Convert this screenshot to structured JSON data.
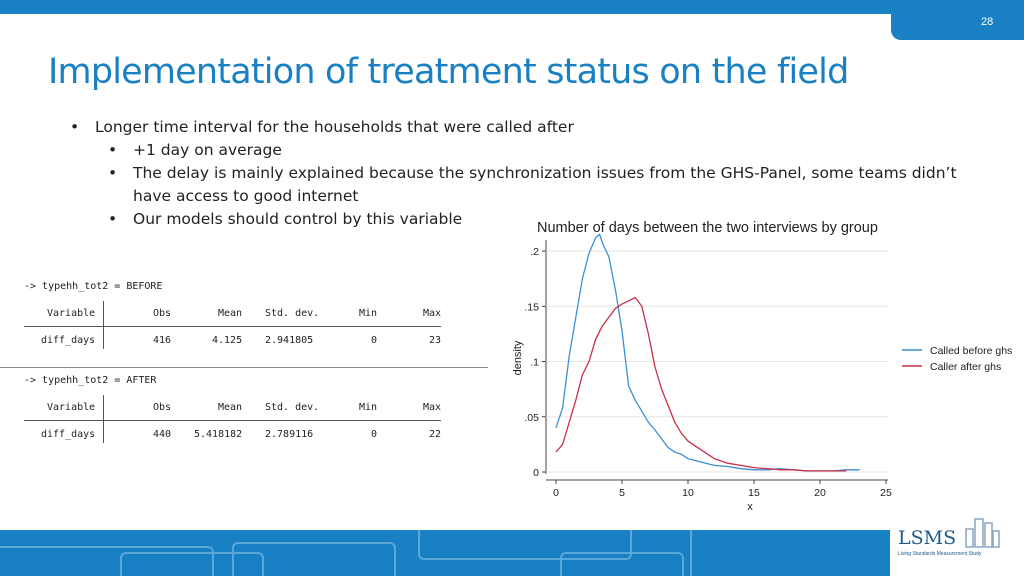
{
  "slide": {
    "page_number": "28",
    "title": "Implementation of treatment status on the field",
    "bullets": [
      {
        "level": 1,
        "text": "Longer time interval for the households that were called after"
      },
      {
        "level": 2,
        "text": "+1 day on average"
      },
      {
        "level": 2,
        "text": "The delay is mainly explained because the synchronization issues from the GHS-Panel, some teams didn’t have access to good internet"
      },
      {
        "level": 2,
        "text": "Our models should control by this variable"
      }
    ],
    "bullet_char": "•"
  },
  "stata": {
    "tables": [
      {
        "header": "-> typehh_tot2 = BEFORE",
        "columns": [
          "Variable",
          "Obs",
          "Mean",
          "Std. dev.",
          "Min",
          "Max"
        ],
        "row": [
          "diff_days",
          "416",
          "4.125",
          "2.941805",
          "0",
          "23"
        ]
      },
      {
        "header": "-> typehh_tot2 = AFTER",
        "columns": [
          "Variable",
          "Obs",
          "Mean",
          "Std. dev.",
          "Min",
          "Max"
        ],
        "row": [
          "diff_days",
          "440",
          "5.418182",
          "2.789116",
          "0",
          "22"
        ]
      }
    ]
  },
  "chart_data": {
    "type": "line",
    "title": "Number of days between the two interviews by group",
    "xlabel": "x",
    "ylabel": "density",
    "xlim": [
      0,
      25
    ],
    "ylim": [
      0,
      0.21
    ],
    "xticks": [
      "0",
      "5",
      "10",
      "15",
      "20",
      "25"
    ],
    "yticks": [
      "0",
      ".05",
      ".1",
      ".15",
      ".2"
    ],
    "legend_position": "right",
    "series": [
      {
        "name": "Called before ghs",
        "color": "#3a8fd8",
        "x": [
          0,
          0.5,
          1,
          1.5,
          2,
          2.5,
          3,
          3.3,
          3.6,
          4,
          4.5,
          5,
          5.5,
          6,
          6.5,
          7,
          7.5,
          8,
          8.5,
          9,
          9.5,
          10,
          11,
          12,
          13,
          14,
          15,
          16,
          17,
          18,
          19,
          20,
          21,
          22,
          23
        ],
        "y": [
          0.04,
          0.058,
          0.105,
          0.14,
          0.175,
          0.198,
          0.212,
          0.215,
          0.205,
          0.195,
          0.165,
          0.128,
          0.078,
          0.065,
          0.055,
          0.045,
          0.038,
          0.03,
          0.022,
          0.018,
          0.016,
          0.012,
          0.009,
          0.006,
          0.005,
          0.003,
          0.002,
          0.002,
          0.003,
          0.002,
          0.001,
          0.001,
          0.001,
          0.002,
          0.002
        ]
      },
      {
        "name": "Caller after ghs",
        "color": "#c8304a",
        "x": [
          0,
          0.5,
          1,
          1.5,
          2,
          2.5,
          3,
          3.5,
          4,
          4.5,
          5,
          5.5,
          6,
          6.5,
          7,
          7.5,
          8,
          8.5,
          9,
          9.5,
          10,
          11,
          12,
          13,
          14,
          15,
          16,
          17,
          18,
          19,
          20,
          21,
          22
        ],
        "y": [
          0.018,
          0.025,
          0.045,
          0.065,
          0.088,
          0.1,
          0.12,
          0.132,
          0.14,
          0.148,
          0.152,
          0.155,
          0.158,
          0.15,
          0.125,
          0.095,
          0.075,
          0.06,
          0.045,
          0.035,
          0.028,
          0.02,
          0.012,
          0.008,
          0.006,
          0.004,
          0.003,
          0.002,
          0.002,
          0.001,
          0.001,
          0.001,
          0.001
        ]
      }
    ]
  },
  "logo": {
    "text": "LSMS",
    "subtitle": "Living Standards Measurement Study"
  }
}
